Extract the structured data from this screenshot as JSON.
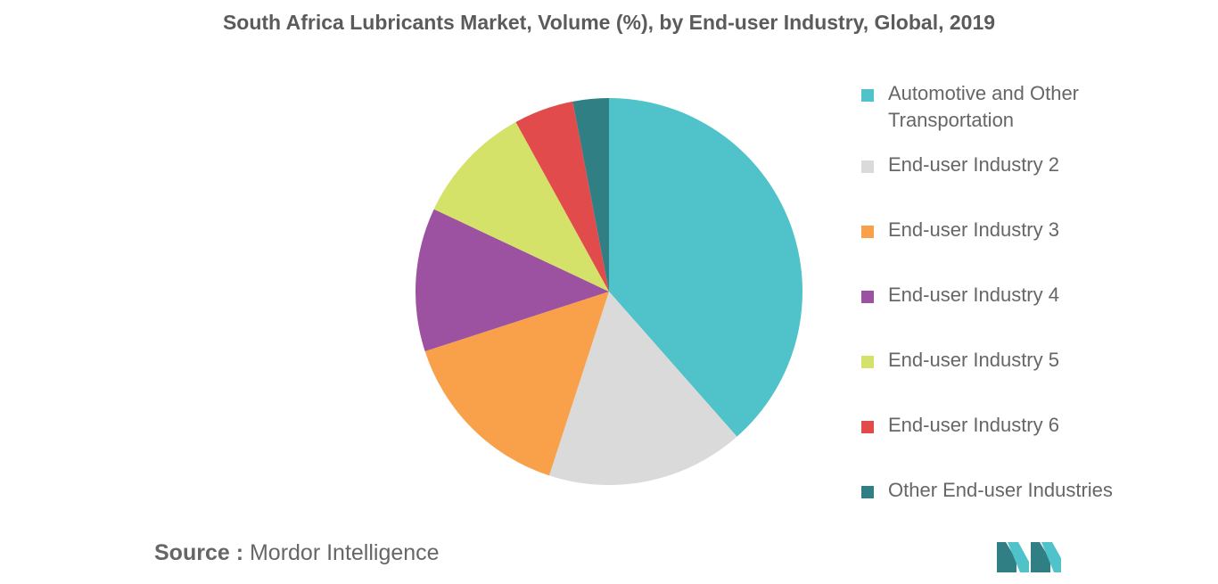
{
  "title": "South Africa Lubricants Market, Volume (%), by End-user Industry, Global, 2019",
  "chart_data": {
    "type": "pie",
    "title": "South Africa Lubricants Market, Volume (%), by End-user Industry, Global, 2019",
    "legend_placement": "right",
    "start_angle": "top, clockwise",
    "categories": [
      "Automotive and Other Transportation",
      "End-user Industry 2",
      "End-user Industry 3",
      "End-user Industry 4",
      "End-user Industry 5",
      "End-user Industry 6",
      "Other End-user Industries"
    ],
    "values": [
      38.5,
      16.5,
      15.0,
      12.0,
      10.0,
      5.0,
      3.0
    ],
    "colors": [
      "#4fc3c9",
      "#dadada",
      "#f9a04b",
      "#9c52a0",
      "#d4e26a",
      "#e24b4b",
      "#2f7f84"
    ]
  },
  "source": {
    "label": "Source :",
    "text": " Mordor Intelligence"
  },
  "logo": {
    "icon": "mordor-intelligence-logo-icon",
    "colors": [
      "#2f7f84",
      "#4fc3c9"
    ]
  }
}
